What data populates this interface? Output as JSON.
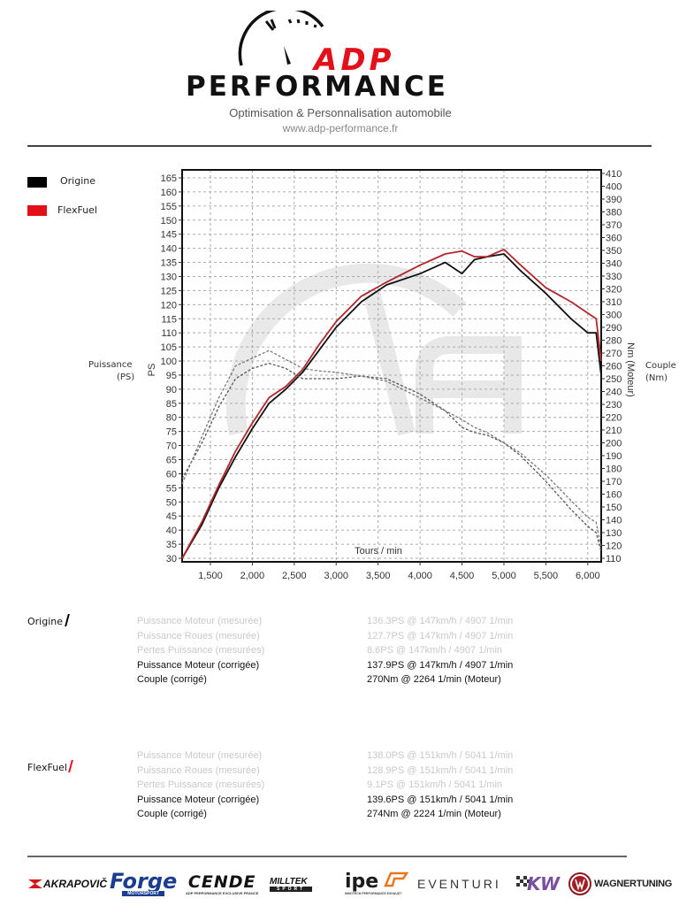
{
  "header": {
    "brand_top": "ADP",
    "brand_bottom": "PERFORMANCE",
    "tagline": "Optimisation & Personnalisation automobile",
    "website": "www.adp-performance.fr",
    "accent_color": "#e3101a"
  },
  "legend": {
    "items": [
      {
        "label": "Origine",
        "color": "#000000"
      },
      {
        "label": "FlexFuel",
        "color": "#e3101a"
      }
    ]
  },
  "axes": {
    "left_title": "Puissance",
    "left_unit": "(PS)",
    "left_axis_name": "PS",
    "right_title": "Couple",
    "right_unit": "(Nm)",
    "right_axis_name": "Nm (Moteur)",
    "x_title": "Tours / min"
  },
  "chart_data": {
    "type": "line",
    "title": "",
    "xlabel": "Tours / min",
    "ylabel": "PS",
    "y2label": "Nm (Moteur)",
    "xlim": [
      1163,
      6160
    ],
    "ylim": [
      28,
      168
    ],
    "y2lim": [
      107,
      412
    ],
    "grid": true,
    "legend_position": "top-left outside",
    "x_ticks": [
      "1,500",
      "2,000",
      "2,500",
      "3,000",
      "3,500",
      "4,000",
      "4,500",
      "5,000",
      "5,500",
      "6,000"
    ],
    "x_tick_values": [
      1500,
      2000,
      2500,
      3000,
      3500,
      4000,
      4500,
      5000,
      5500,
      6000
    ],
    "y_ticks": [
      30,
      35,
      40,
      45,
      50,
      55,
      60,
      65,
      70,
      75,
      80,
      85,
      90,
      95,
      100,
      105,
      110,
      115,
      120,
      125,
      130,
      135,
      140,
      145,
      150,
      155,
      160,
      165
    ],
    "y2_ticks": [
      110,
      120,
      130,
      140,
      150,
      160,
      170,
      180,
      190,
      200,
      210,
      220,
      230,
      240,
      250,
      260,
      270,
      280,
      290,
      300,
      310,
      320,
      330,
      340,
      350,
      360,
      370,
      380,
      390,
      400,
      410
    ],
    "x": [
      1163,
      1400,
      1600,
      1800,
      2000,
      2200,
      2400,
      2600,
      2800,
      3000,
      3300,
      3600,
      4000,
      4300,
      4500,
      4650,
      4800,
      5000,
      5200,
      5500,
      5800,
      6000,
      6100,
      6160
    ],
    "series": [
      {
        "name": "Origine Puissance (PS)",
        "axis": "left",
        "style": "solid",
        "color": "#111111",
        "values": [
          30,
          42,
          55,
          66,
          76,
          85,
          90,
          96,
          104,
          112,
          121,
          127,
          131,
          135,
          131,
          136,
          137,
          138,
          132,
          124,
          115,
          110,
          110,
          95
        ]
      },
      {
        "name": "FlexFuel Puissance (PS)",
        "axis": "left",
        "style": "solid",
        "color": "#b3262b",
        "values": [
          30,
          43,
          56,
          68,
          78,
          87,
          91,
          97,
          106,
          114,
          123,
          128,
          134,
          138,
          139,
          137,
          137,
          139.6,
          134,
          126,
          121,
          117,
          115,
          100
        ]
      },
      {
        "name": "Origine Couple (Nm)",
        "axis": "right",
        "style": "dashed",
        "color": "#555555",
        "values": [
          172,
          200,
          228,
          250,
          258,
          262,
          258,
          250,
          250,
          250,
          252,
          250,
          238,
          225,
          212,
          208,
          206,
          200,
          190,
          170,
          148,
          135,
          130,
          115
        ]
      },
      {
        "name": "FlexFuel Couple (Nm)",
        "axis": "right",
        "style": "dashed",
        "color": "#777777",
        "values": [
          168,
          205,
          235,
          260,
          266,
          272,
          265,
          258,
          256,
          255,
          252,
          248,
          235,
          225,
          218,
          212,
          208,
          200,
          192,
          175,
          155,
          142,
          138,
          118
        ]
      }
    ]
  },
  "results": [
    {
      "label": "Origine",
      "slash_color": "#000000",
      "rows": [
        {
          "name": "Puissance Moteur (mesurée)",
          "value": "136.3PS @ 147km/h / 4907 1/min",
          "faded": true
        },
        {
          "name": "Puissance Roues (mesurée)",
          "value": "127.7PS @ 147km/h / 4907 1/min",
          "faded": true
        },
        {
          "name": "Pertes Puissance (mesurées)",
          "value": "8.6PS @ 147km/h / 4907 1/min",
          "faded": true
        },
        {
          "name": "Puissance Moteur (corrigée)",
          "value": "137.9PS @ 147km/h / 4907 1/min",
          "faded": false
        },
        {
          "name": "Couple (corrigé)",
          "value": "270Nm @ 2264 1/min (Moteur)",
          "faded": false
        }
      ]
    },
    {
      "label": "FlexFuel",
      "slash_color": "#e3101a",
      "rows": [
        {
          "name": "Puissance Moteur (mesurée)",
          "value": "138.0PS @ 151km/h / 5041 1/min",
          "faded": true
        },
        {
          "name": "Puissance Roues (mesurée)",
          "value": "128.9PS @ 151km/h / 5041 1/min",
          "faded": true
        },
        {
          "name": "Pertes Puissance (mesurées)",
          "value": "9.1PS @ 151km/h / 5041 1/min",
          "faded": true
        },
        {
          "name": "Puissance Moteur (corrigée)",
          "value": "139.6PS @ 151km/h / 5041 1/min",
          "faded": false
        },
        {
          "name": "Couple (corrigé)",
          "value": "274Nm @ 2224 1/min (Moteur)",
          "faded": false
        }
      ]
    }
  ],
  "sponsors": [
    {
      "name": "AKRAPOVIČ",
      "icon": "akrapovic-logo"
    },
    {
      "name": "Forge",
      "sub": "MOTORSPORT",
      "icon": "forge-logo"
    },
    {
      "name": "CENDE",
      "sub": "ADP PERFORMANCE EXCLUSIVE FRANCE",
      "icon": "cende-logo"
    },
    {
      "name": "MILLTEK",
      "sub": "SPORT",
      "icon": "milltek-logo"
    },
    {
      "name": "ipe",
      "sub": "INNOTECH PERFORMANCE EXHAUST",
      "icon": "ipe-logo"
    },
    {
      "name": "EVENTURI",
      "icon": "eventuri-logo"
    },
    {
      "name": "KW",
      "icon": "kw-logo"
    },
    {
      "name": "WAGNERTUNING",
      "icon": "wagner-tuning-logo"
    }
  ]
}
